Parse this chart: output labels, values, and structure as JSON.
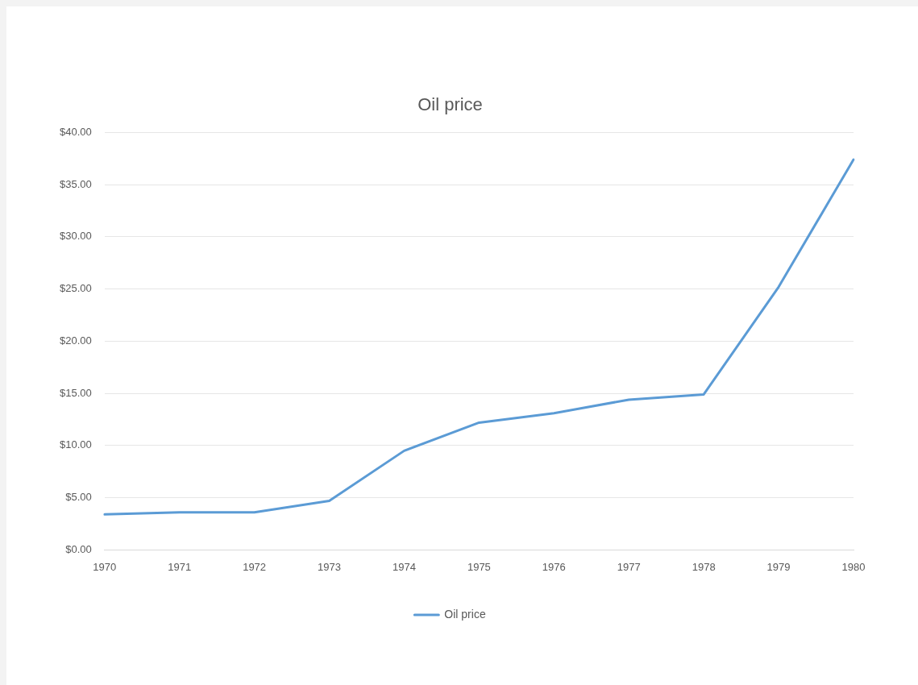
{
  "chart_data": {
    "type": "line",
    "title": "Oil price",
    "categories": [
      "1970",
      "1971",
      "1972",
      "1973",
      "1974",
      "1975",
      "1976",
      "1977",
      "1978",
      "1979",
      "1980"
    ],
    "series": [
      {
        "name": "Oil price",
        "color": "#5b9bd5",
        "values": [
          3.4,
          3.6,
          3.6,
          4.7,
          9.5,
          12.2,
          13.1,
          14.4,
          14.9,
          25.2,
          37.4
        ]
      }
    ],
    "ylim": [
      0,
      40
    ],
    "yticks": [
      {
        "value": 0,
        "label": "$0.00"
      },
      {
        "value": 5,
        "label": "$5.00"
      },
      {
        "value": 10,
        "label": "$10.00"
      },
      {
        "value": 15,
        "label": "$15.00"
      },
      {
        "value": 20,
        "label": "$20.00"
      },
      {
        "value": 25,
        "label": "$25.00"
      },
      {
        "value": 30,
        "label": "$30.00"
      },
      {
        "value": 35,
        "label": "$35.00"
      },
      {
        "value": 40,
        "label": "$40.00"
      }
    ],
    "grid": "y",
    "legend": "bottom",
    "marker": "none",
    "line_style": "solid"
  }
}
